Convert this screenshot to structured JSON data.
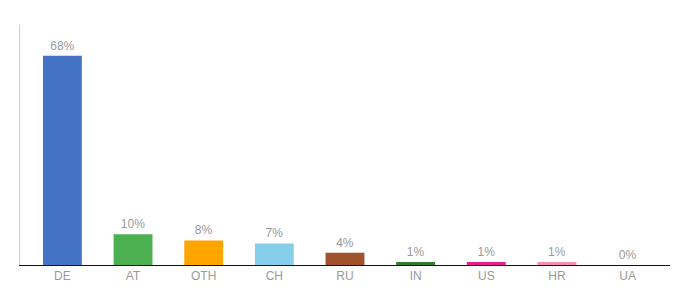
{
  "chart_data": {
    "type": "bar",
    "categories": [
      "DE",
      "AT",
      "OTH",
      "CH",
      "RU",
      "IN",
      "US",
      "HR",
      "UA"
    ],
    "values": [
      68,
      10,
      8,
      7,
      4,
      1,
      1,
      1,
      0
    ],
    "value_labels": [
      "68%",
      "10%",
      "8%",
      "7%",
      "4%",
      "1%",
      "1%",
      "1%",
      "0%"
    ],
    "colors": [
      "#4472C4",
      "#4CAF50",
      "#FFA500",
      "#87CEEB",
      "#A0522D",
      "#2E7D32",
      "#E91E8C",
      "#F48FB1",
      "#EEEEEE"
    ],
    "ylim": [
      0,
      78
    ],
    "data_labels": true,
    "tick_labels": "x",
    "grid": false
  }
}
